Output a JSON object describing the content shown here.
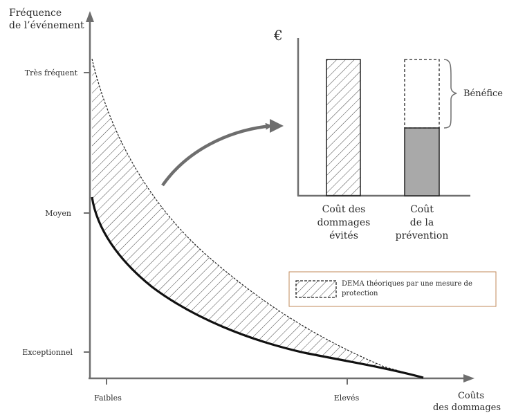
{
  "y_axis": {
    "title_line1": "Fréquence",
    "title_line2": "de l’événement",
    "levels": [
      "Très fréquent",
      "Moyen",
      "Exceptionnel"
    ]
  },
  "x_axis": {
    "title_line1": "Coûts",
    "title_line2": "des dommages",
    "levels": [
      "Faibles",
      "Elevés"
    ]
  },
  "inset": {
    "currency_symbol": "€",
    "bar1_label": [
      "Coût des",
      "dommages",
      "évités"
    ],
    "bar2_label": [
      "Coût",
      "de la",
      "prévention"
    ],
    "benefit_label": "Bénéfice"
  },
  "legend": {
    "text_line1": "DEMA théoriques par une mesure de",
    "text_line2": "protection"
  },
  "colors": {
    "axis": "#6e6e6e",
    "curve": "#111111",
    "prevention_fill": "#a9a9a9",
    "legend_border": "#c08a5a"
  }
}
